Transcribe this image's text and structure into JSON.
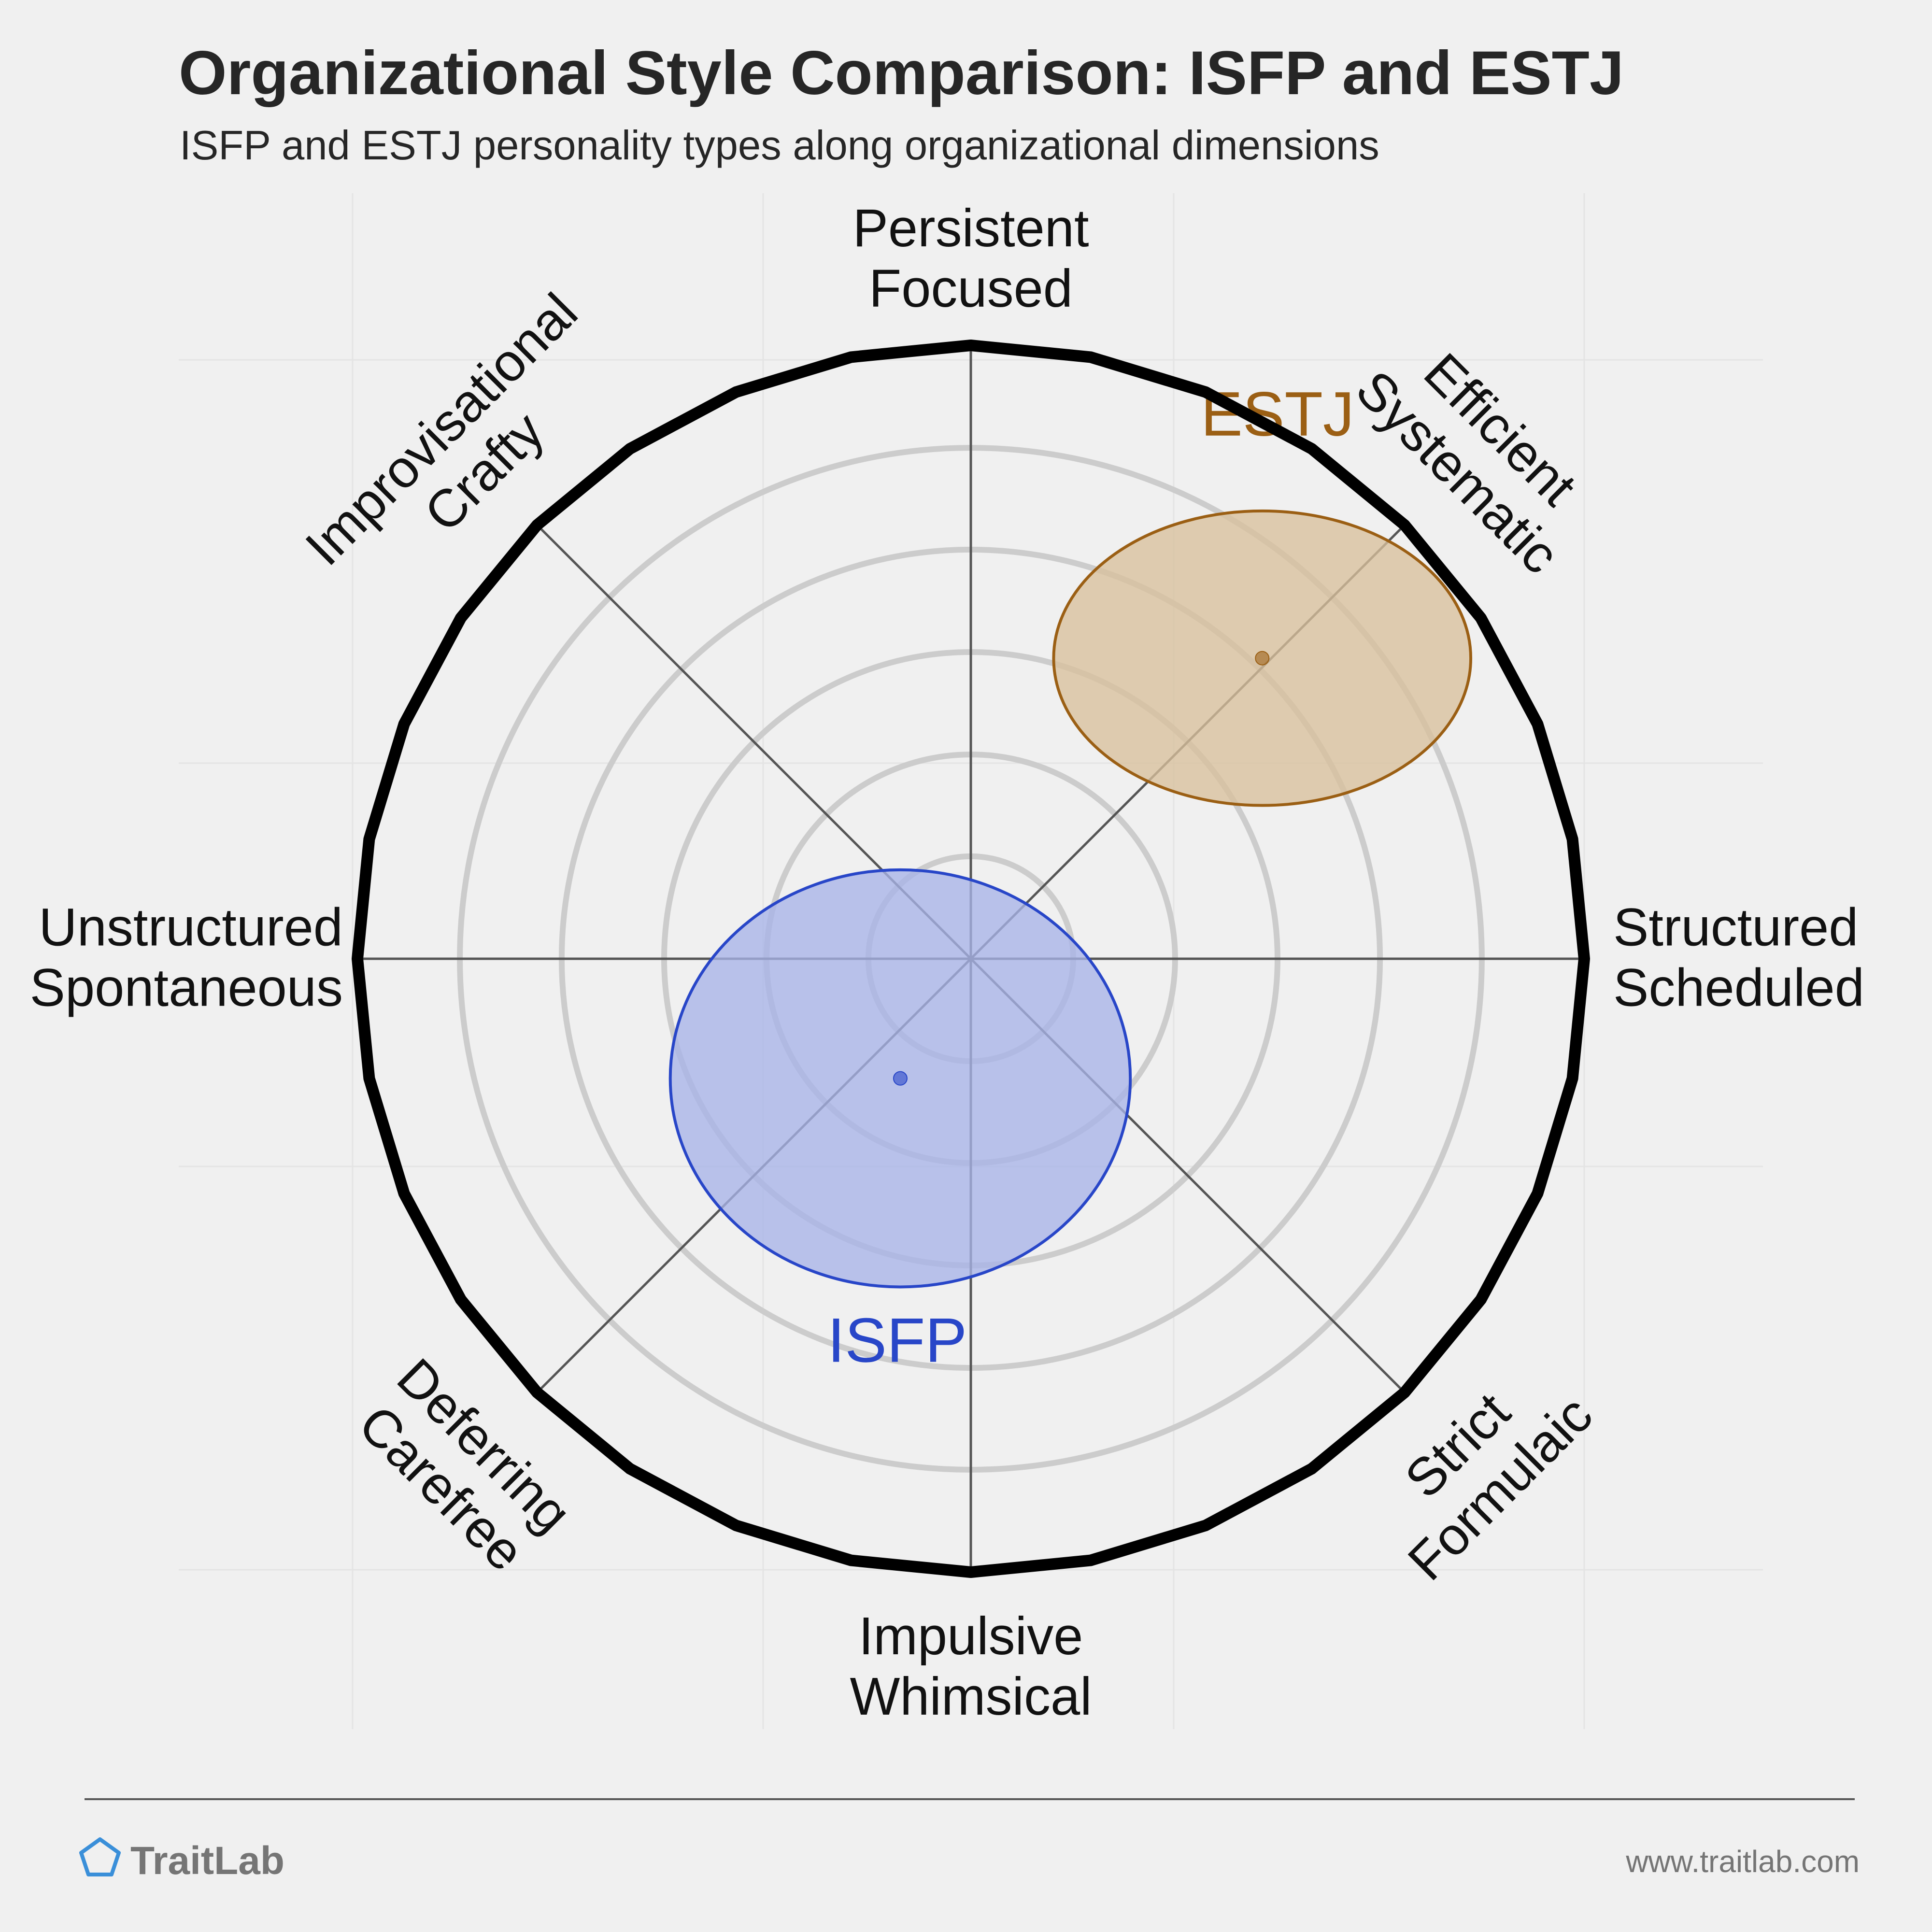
{
  "title": "Organizational Style Comparison: ISFP and ESTJ",
  "subtitle": "ISFP and ESTJ personality types along organizational dimensions",
  "footer": {
    "brand": "TraitLab",
    "url": "www.traitlab.com"
  },
  "colors": {
    "background": "#f0f0f0",
    "ring": "#cccccc",
    "axis": "#555555",
    "outer": "#000000"
  },
  "chart_data": {
    "type": "scatter",
    "projection": "polar",
    "axes": [
      {
        "angle_deg": 90,
        "lines": [
          "Persistent",
          "Focused"
        ]
      },
      {
        "angle_deg": 45,
        "lines": [
          "Efficient",
          "Systematic"
        ]
      },
      {
        "angle_deg": 0,
        "lines": [
          "Structured",
          "Scheduled"
        ]
      },
      {
        "angle_deg": -45,
        "lines": [
          "Strict",
          "Formulaic"
        ]
      },
      {
        "angle_deg": -90,
        "lines": [
          "Impulsive",
          "Whimsical"
        ]
      },
      {
        "angle_deg": -135,
        "lines": [
          "Deferring",
          "Carefree"
        ]
      },
      {
        "angle_deg": 180,
        "lines": [
          "Unstructured",
          "Spontaneous"
        ]
      },
      {
        "angle_deg": 135,
        "lines": [
          "Improvisational",
          "Crafty"
        ]
      }
    ],
    "rings": [
      0.167,
      0.333,
      0.5,
      0.667,
      0.833
    ],
    "grid": true,
    "range": [
      -1,
      1
    ],
    "series": [
      {
        "name": "ISFP",
        "x": -0.115,
        "y": -0.195,
        "sd_x": 0.375,
        "sd_y": 0.34,
        "color": "#2846c8",
        "fill": "#a8b4e8",
        "label_pos": {
          "x": -0.12,
          "y": -0.63
        }
      },
      {
        "name": "ESTJ",
        "x": 0.475,
        "y": 0.49,
        "sd_x": 0.34,
        "sd_y": 0.24,
        "color": "#9b5f14",
        "fill": "#d8c09c",
        "label_pos": {
          "x": 0.5,
          "y": 0.88
        }
      }
    ]
  }
}
